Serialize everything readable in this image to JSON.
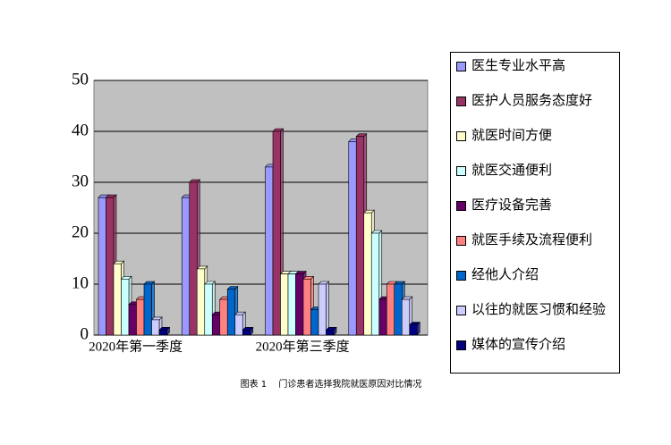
{
  "chart_data": {
    "type": "bar",
    "caption": "图表 1　 门诊患者选择我院就医原因对比情况",
    "categories": [
      "2020年第一季度",
      null,
      "2020年第三季度",
      null
    ],
    "series": [
      {
        "name": "医生专业水平高",
        "color": "#9999ff",
        "values": [
          27,
          27,
          33,
          38
        ]
      },
      {
        "name": "医护人员服务态度好",
        "color": "#993366",
        "values": [
          27,
          30,
          40,
          39
        ]
      },
      {
        "name": "就医时间方便",
        "color": "#ffffcc",
        "values": [
          14,
          13,
          12,
          24
        ]
      },
      {
        "name": "就医交通便利",
        "color": "#ccffff",
        "values": [
          11,
          10,
          12,
          20
        ]
      },
      {
        "name": "医疗设备完善",
        "color": "#660066",
        "values": [
          6,
          4,
          12,
          7
        ]
      },
      {
        "name": "就医手续及流程便利",
        "color": "#ff8080",
        "values": [
          7,
          7,
          11,
          10
        ]
      },
      {
        "name": "经他人介绍",
        "color": "#0066cc",
        "values": [
          10,
          9,
          5,
          10
        ]
      },
      {
        "name": "以往的就医习惯和经验",
        "color": "#ccccff",
        "values": [
          3,
          4,
          10,
          7
        ]
      },
      {
        "name": "媒体的宣传介绍",
        "color": "#000080",
        "values": [
          1,
          1,
          1,
          2
        ]
      }
    ],
    "ylim": [
      0,
      50
    ],
    "yticks": [
      0,
      10,
      20,
      30,
      40,
      50
    ],
    "grid": true
  }
}
